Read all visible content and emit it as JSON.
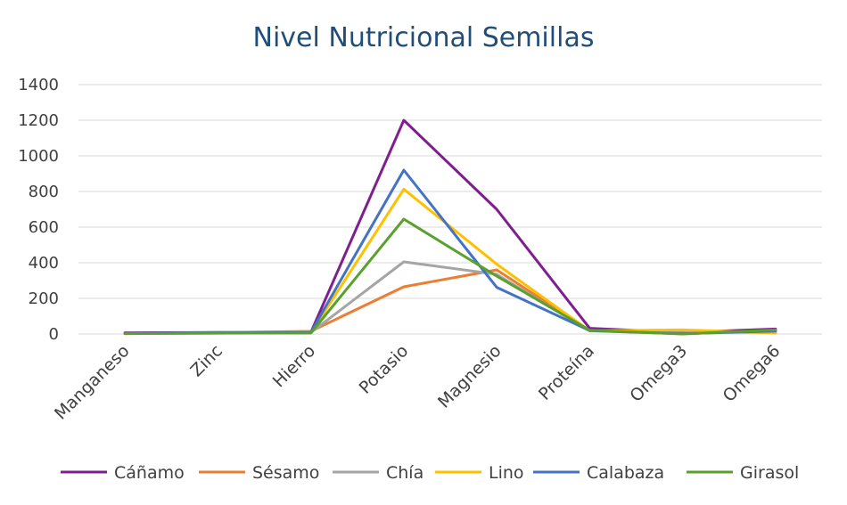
{
  "chart_data": {
    "type": "line",
    "title": "Nivel Nutricional Semillas",
    "xlabel": "",
    "ylabel": "",
    "categories": [
      "Manganeso",
      "Zinc",
      "Hierro",
      "Potasio",
      "Magnesio",
      "Proteína",
      "Omega3",
      "Omega6"
    ],
    "ylim": [
      0,
      1400
    ],
    "yticks": [
      0,
      200,
      400,
      600,
      800,
      1000,
      1200,
      1400
    ],
    "grid": true,
    "legend_position": "bottom",
    "series": [
      {
        "name": "Cáñamo",
        "color": "#7f1f8f",
        "values": [
          7,
          9,
          8,
          1200,
          700,
          32,
          9,
          28
        ]
      },
      {
        "name": "Sésamo",
        "color": "#ed7d31",
        "values": [
          2,
          8,
          15,
          265,
          360,
          18,
          1,
          20
        ]
      },
      {
        "name": "Chía",
        "color": "#a5a5a5",
        "values": [
          3,
          5,
          8,
          405,
          335,
          17,
          18,
          6
        ]
      },
      {
        "name": "Lino",
        "color": "#ffc000",
        "values": [
          3,
          4,
          6,
          813,
          392,
          18,
          23,
          6
        ]
      },
      {
        "name": "Calabaza",
        "color": "#4472c4",
        "values": [
          4,
          8,
          9,
          920,
          262,
          19,
          2,
          16
        ]
      },
      {
        "name": "Girasol",
        "color": "#5aa02c",
        "values": [
          2,
          5,
          5,
          645,
          325,
          21,
          0,
          23
        ]
      }
    ]
  }
}
